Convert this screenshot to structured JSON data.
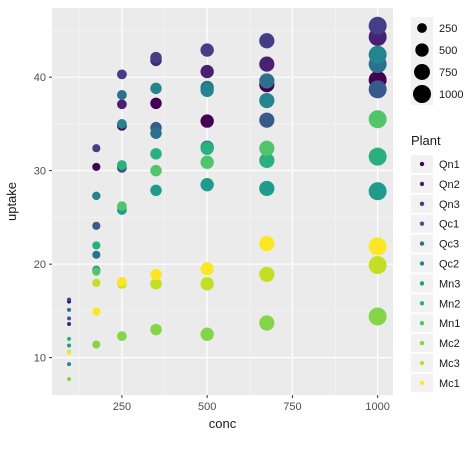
{
  "chart_data": {
    "type": "scatter",
    "title": "",
    "xlabel": "conc",
    "ylabel": "uptake",
    "xlim": [
      45,
      1045
    ],
    "ylim": [
      6.0,
      47.4
    ],
    "x_ticks": [
      250,
      500,
      750,
      1000
    ],
    "y_ticks": [
      10,
      20,
      30,
      40
    ],
    "grid": true,
    "size_legend": {
      "title": "",
      "values": [
        250,
        500,
        750,
        1000
      ]
    },
    "color_legend": {
      "title": "Plant",
      "placement": "right"
    },
    "x": [
      95,
      175,
      250,
      350,
      500,
      675,
      1000
    ],
    "series": [
      {
        "name": "Qn1",
        "color": "#440154",
        "values": [
          16.0,
          30.4,
          34.8,
          37.2,
          35.3,
          39.2,
          39.7
        ]
      },
      {
        "name": "Qn2",
        "color": "#482173",
        "values": [
          13.6,
          27.3,
          37.1,
          41.8,
          40.6,
          41.4,
          44.3
        ]
      },
      {
        "name": "Qn3",
        "color": "#433e85",
        "values": [
          16.2,
          32.4,
          40.3,
          42.1,
          42.9,
          43.9,
          45.5
        ]
      },
      {
        "name": "Qc1",
        "color": "#38598c",
        "values": [
          14.2,
          24.1,
          30.3,
          34.6,
          32.5,
          35.4,
          38.7
        ]
      },
      {
        "name": "Qc3",
        "color": "#2d708e",
        "values": [
          15.1,
          21.0,
          38.1,
          34.0,
          38.9,
          39.6,
          41.4
        ]
      },
      {
        "name": "Qc2",
        "color": "#25858e",
        "values": [
          9.3,
          27.3,
          35.0,
          38.8,
          38.6,
          37.5,
          42.4
        ]
      },
      {
        "name": "Mn3",
        "color": "#1e9b8a",
        "values": [
          11.3,
          19.4,
          25.8,
          27.9,
          28.5,
          28.1,
          27.8
        ]
      },
      {
        "name": "Mn2",
        "color": "#2ab07f",
        "values": [
          12.0,
          22.0,
          30.6,
          31.8,
          32.4,
          31.1,
          31.5
        ]
      },
      {
        "name": "Mn1",
        "color": "#51c56a",
        "values": [
          10.6,
          19.2,
          26.2,
          30.0,
          30.9,
          32.4,
          35.5
        ]
      },
      {
        "name": "Mc2",
        "color": "#86d549",
        "values": [
          7.7,
          11.4,
          12.3,
          13.0,
          12.5,
          13.7,
          14.4
        ]
      },
      {
        "name": "Mc3",
        "color": "#c2df23",
        "values": [
          10.6,
          18.0,
          17.9,
          17.9,
          17.9,
          18.9,
          19.9
        ]
      },
      {
        "name": "Mc1",
        "color": "#fde725",
        "values": [
          10.5,
          14.9,
          18.1,
          18.9,
          19.5,
          22.2,
          21.9
        ]
      }
    ]
  }
}
